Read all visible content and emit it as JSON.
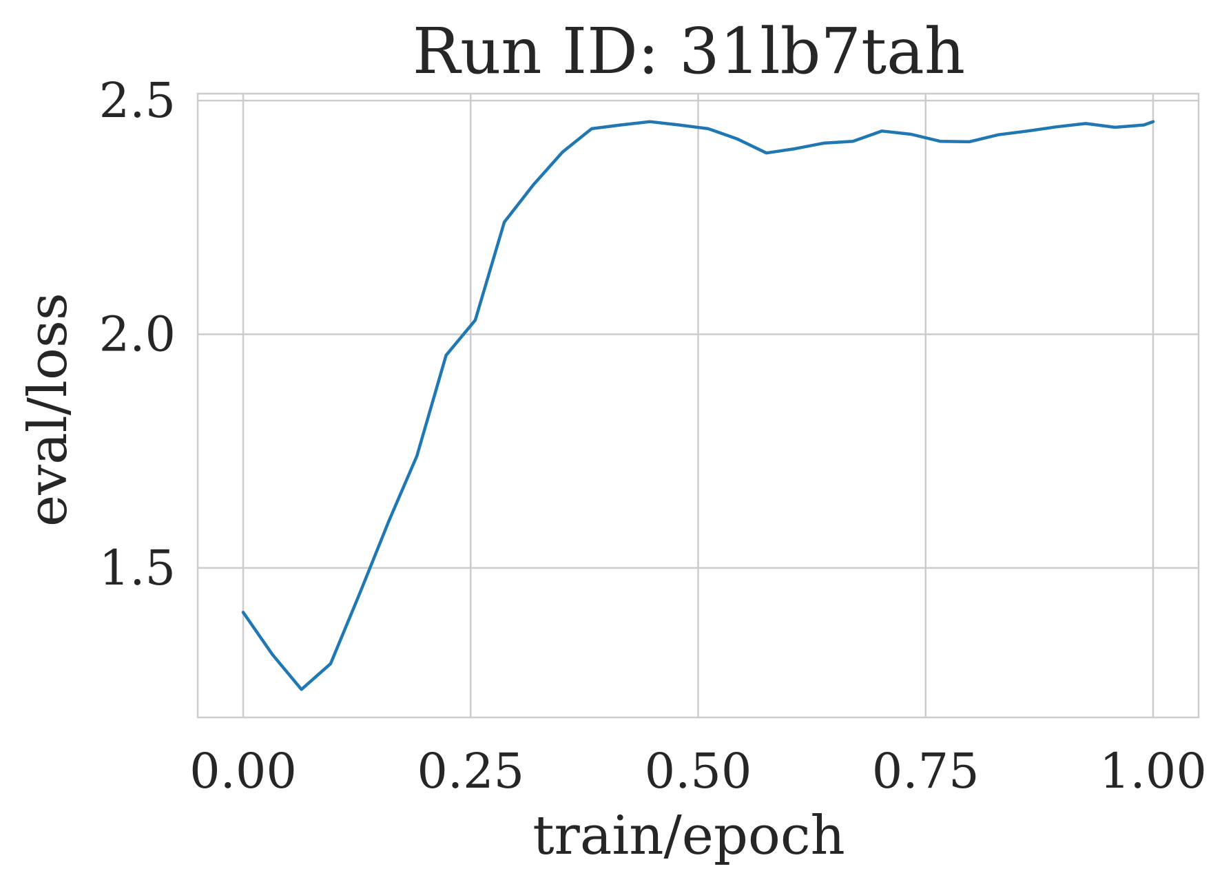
{
  "chart_data": {
    "type": "line",
    "title": "Run ID: 31lb7tah",
    "xlabel": "train/epoch",
    "ylabel": "eval/loss",
    "xlim": [
      -0.05,
      1.05
    ],
    "ylim": [
      1.18,
      2.515
    ],
    "xticks": [
      0.0,
      0.25,
      0.5,
      0.75,
      1.0
    ],
    "xtick_labels": [
      "0.00",
      "0.25",
      "0.50",
      "0.75",
      "1.00"
    ],
    "yticks": [
      1.5,
      2.0,
      2.5
    ],
    "ytick_labels": [
      "1.5",
      "2.0",
      "2.5"
    ],
    "grid": true,
    "line_color": "#1f77b4",
    "series": [
      {
        "x": [
          0.0,
          0.032,
          0.064,
          0.096,
          0.128,
          0.16,
          0.191,
          0.223,
          0.255,
          0.287,
          0.319,
          0.351,
          0.383,
          0.415,
          0.447,
          0.479,
          0.511,
          0.543,
          0.575,
          0.606,
          0.638,
          0.67,
          0.702,
          0.734,
          0.766,
          0.798,
          0.83,
          0.862,
          0.894,
          0.926,
          0.958,
          0.99,
          1.0
        ],
        "y": [
          1.405,
          1.315,
          1.24,
          1.295,
          1.445,
          1.6,
          1.74,
          1.955,
          2.03,
          2.24,
          2.32,
          2.39,
          2.44,
          2.448,
          2.455,
          2.448,
          2.44,
          2.418,
          2.388,
          2.397,
          2.409,
          2.413,
          2.435,
          2.428,
          2.413,
          2.412,
          2.427,
          2.435,
          2.444,
          2.451,
          2.443,
          2.448,
          2.455
        ]
      }
    ]
  }
}
